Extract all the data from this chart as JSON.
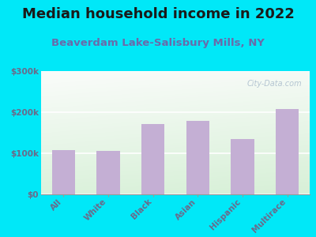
{
  "title": "Median household income in 2022",
  "subtitle": "Beaverdam Lake-Salisbury Mills, NY",
  "categories": [
    "All",
    "White",
    "Black",
    "Asian",
    "Hispanic",
    "Multirace"
  ],
  "values": [
    108000,
    105000,
    172000,
    178000,
    135000,
    207000
  ],
  "bar_color": "#c4afd4",
  "ylim": [
    0,
    300000
  ],
  "yticks": [
    0,
    100000,
    200000,
    300000
  ],
  "ytick_labels": [
    "$0",
    "$100k",
    "$200k",
    "$300k"
  ],
  "background_outer": "#00e8f8",
  "title_color": "#1a1a1a",
  "subtitle_color": "#6a6aaa",
  "tick_color": "#6a6a8a",
  "watermark": "City-Data.com",
  "title_fontsize": 13,
  "subtitle_fontsize": 9.5,
  "tick_fontsize": 7.5
}
